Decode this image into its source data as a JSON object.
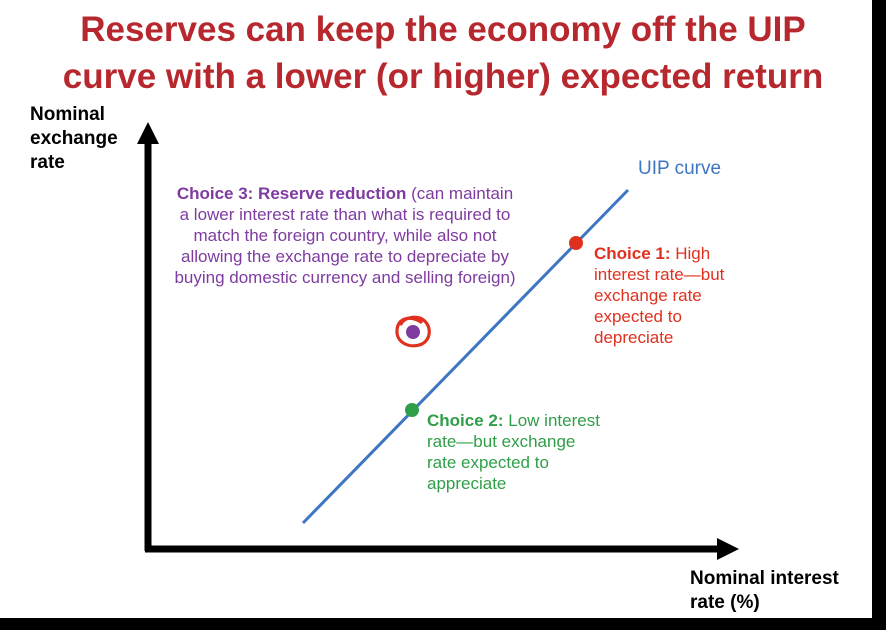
{
  "title_line1": "Reserves can keep the economy off the UIP",
  "title_line2": "curve with a lower (or higher) expected return",
  "y_axis_label": [
    "Nominal",
    "exchange",
    "rate"
  ],
  "x_axis_label": [
    "Nominal interest",
    "rate (%)"
  ],
  "curve_label": "UIP curve",
  "choice3": {
    "heading": "Choice 3: Reserve reduction",
    "text_line1": " (can maintain",
    "text_line2": "a lower interest rate than what is required to",
    "text_line3": "match the foreign country, while also not",
    "text_line4": "allowing the exchange rate to depreciate  by",
    "text_line5": "buying domestic currency and selling foreign)"
  },
  "choice1": {
    "heading": "Choice 1:",
    "text_line1": " High",
    "text_line2": "interest rate—but",
    "text_line3": "exchange rate",
    "text_line4": "expected to",
    "text_line5": "depreciate"
  },
  "choice2": {
    "heading": "Choice 2:",
    "text_line1": " Low interest",
    "text_line2": "rate—but exchange",
    "text_line3": "rate expected to",
    "text_line4": "appreciate"
  },
  "colors": {
    "title": "#b7282e",
    "uip_curve": "#3e76c2",
    "choice1": "#e0301e",
    "choice2": "#2f9e48",
    "choice3": "#7e3ba0"
  }
}
